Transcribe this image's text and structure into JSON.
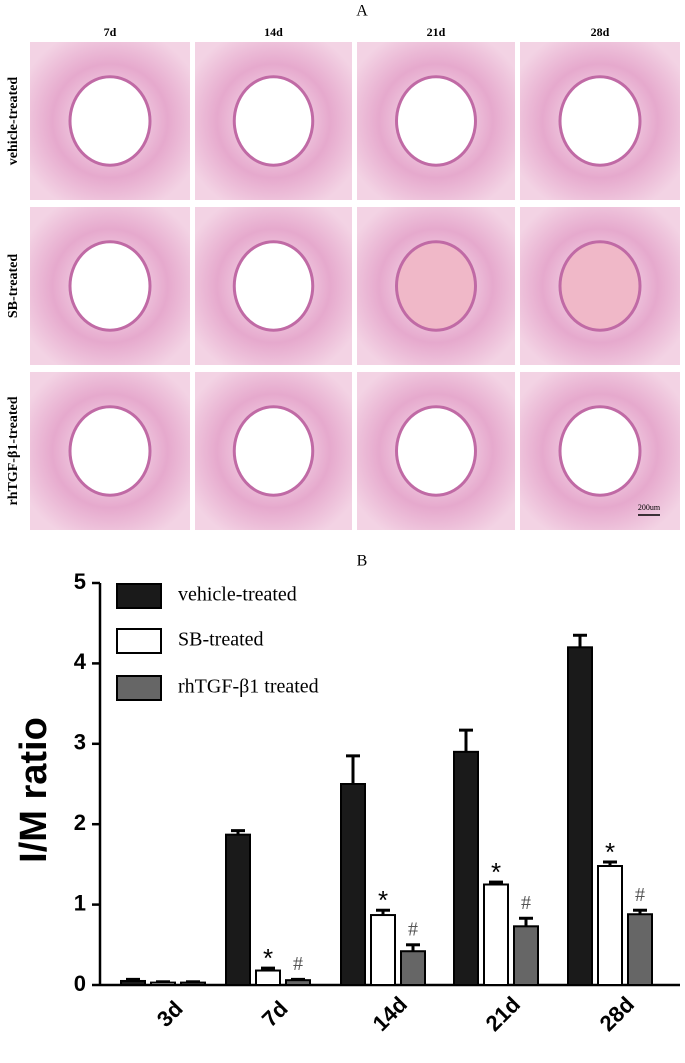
{
  "panel_a": {
    "label": "A",
    "columns": [
      "7d",
      "14d",
      "21d",
      "28d"
    ],
    "rows": [
      "vehicle-treated",
      "SB-treated",
      "rhTGF-β1-treated"
    ],
    "scale_bar": "200um"
  },
  "chart_data": {
    "type": "bar",
    "label": "B",
    "ylabel": "I/M ratio",
    "categories": [
      "3d",
      "7d",
      "14d",
      "21d",
      "28d"
    ],
    "series": [
      {
        "name": "vehicle-treated",
        "color": "#1a1a1a",
        "values": [
          0.05,
          1.87,
          2.5,
          2.9,
          4.2
        ],
        "errors": [
          0.02,
          0.05,
          0.35,
          0.27,
          0.15
        ],
        "significance": [
          null,
          null,
          null,
          null,
          null
        ]
      },
      {
        "name": "SB-treated",
        "color": "#ffffff",
        "values": [
          0.03,
          0.18,
          0.87,
          1.25,
          1.48
        ],
        "errors": [
          0.01,
          0.03,
          0.06,
          0.03,
          0.05
        ],
        "significance": [
          null,
          "*",
          "*",
          "*",
          "*"
        ]
      },
      {
        "name": "rhTGF-β1 treated",
        "color": "#666666",
        "values": [
          0.03,
          0.06,
          0.42,
          0.73,
          0.88
        ],
        "errors": [
          0.01,
          0.01,
          0.08,
          0.1,
          0.05
        ],
        "significance": [
          null,
          "#",
          "#",
          "#",
          "#"
        ]
      }
    ],
    "ylim": [
      0,
      5
    ],
    "yticks": [
      0,
      1,
      2,
      3,
      4,
      5
    ]
  }
}
